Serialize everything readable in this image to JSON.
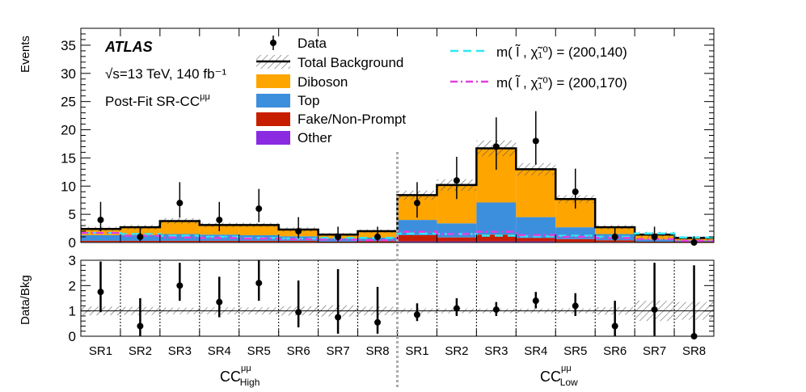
{
  "chart_data": {
    "type": "bar",
    "experiment": "ATLAS",
    "energy_label": "√s=13 TeV, 140 fb⁻¹",
    "region_label": "Post-Fit SR-CC",
    "region_label_sup": "μμ",
    "ylabel": "Events",
    "ylim": [
      0,
      38
    ],
    "yticks": [
      "0",
      "5",
      "10",
      "15",
      "20",
      "25",
      "30",
      "35"
    ],
    "ratio_ylabel": "Data/Bkg",
    "ratio_ylim": [
      0,
      3
    ],
    "ratio_yticks": [
      "0",
      "1",
      "2",
      "3"
    ],
    "categories": [
      "SR1",
      "SR2",
      "SR3",
      "SR4",
      "SR5",
      "SR6",
      "SR7",
      "SR8",
      "SR1",
      "SR2",
      "SR3",
      "SR4",
      "SR5",
      "SR6",
      "SR7",
      "SR8"
    ],
    "groups": [
      {
        "label": "CC",
        "sup": "μμ",
        "sub": "High"
      },
      {
        "label": "CC",
        "sup": "μμ",
        "sub": "Low"
      }
    ],
    "legend": {
      "data": "Data",
      "total": "Total Background",
      "diboson": "Diboson",
      "top": "Top",
      "fake": "Fake/Non-Prompt",
      "other": "Other",
      "sig1": "m( l̃ , χ̃₁⁰) = (200,140)",
      "sig2": "m( l̃ , χ̃₁⁰) = (200,170)"
    },
    "colors": {
      "diboson": "#ffa500",
      "top": "#3c8fdc",
      "fake": "#c81e00",
      "other": "#8a2be2",
      "sig1": "#2ee8f0",
      "sig2": "#e23ee2"
    },
    "stack": {
      "other": [
        0.1,
        0.1,
        0.1,
        0.1,
        0.1,
        0.1,
        0.05,
        0.05,
        0.2,
        0.2,
        0.2,
        0.2,
        0.1,
        0.1,
        0.05,
        0.05
      ],
      "fake": [
        0.2,
        0.2,
        0.2,
        0.2,
        0.2,
        0.2,
        0.1,
        0.2,
        1.1,
        0.7,
        1.2,
        0.6,
        0.5,
        0.3,
        0.1,
        0.1
      ],
      "top": [
        1.0,
        1.0,
        1.2,
        1.1,
        1.0,
        0.8,
        0.6,
        0.6,
        2.7,
        2.5,
        5.7,
        3.7,
        2.1,
        1.1,
        0.4,
        0.2
      ],
      "diboson": [
        1.1,
        1.4,
        2.3,
        1.7,
        1.8,
        1.2,
        0.6,
        1.1,
        4.4,
        6.8,
        9.6,
        8.5,
        5.0,
        1.2,
        0.8,
        0.4
      ]
    },
    "total_background": [
      2.4,
      2.7,
      3.8,
      3.1,
      3.1,
      2.3,
      1.4,
      2.0,
      8.4,
      10.2,
      16.7,
      13.0,
      7.7,
      2.7,
      1.4,
      0.8
    ],
    "total_uncertainty": [
      0.4,
      0.4,
      0.5,
      0.4,
      0.4,
      0.4,
      0.3,
      0.3,
      0.8,
      1.0,
      1.4,
      1.1,
      0.7,
      0.4,
      0.5,
      0.3
    ],
    "data": [
      4,
      1,
      7,
      4,
      6,
      2,
      1,
      1,
      7,
      11,
      17,
      18,
      9,
      1,
      1,
      0
    ],
    "data_err_up": [
      3.2,
      1.8,
      3.7,
      3.2,
      3.5,
      2.5,
      1.8,
      1.8,
      3.7,
      4.2,
      5.2,
      5.3,
      4.1,
      1.8,
      1.8,
      1.1
    ],
    "data_err_dn": [
      2.0,
      0.8,
      2.6,
      2.0,
      2.4,
      1.3,
      0.8,
      0.8,
      2.6,
      3.3,
      4.1,
      4.2,
      3.0,
      0.8,
      0.8,
      0
    ],
    "signal_200_140": [
      1.7,
      1.5,
      1.2,
      1.0,
      0.8,
      0.7,
      0.8,
      0.8,
      1.6,
      1.5,
      1.2,
      1.1,
      1.2,
      1.0,
      1.6,
      0.9
    ],
    "signal_200_170": [
      1.7,
      1.2,
      0.9,
      0.8,
      0.7,
      0.6,
      0.5,
      0.4,
      1.9,
      1.5,
      1.9,
      1.3,
      1.0,
      0.8,
      0.6,
      0.3
    ],
    "ratio": [
      1.75,
      0.4,
      2.0,
      1.35,
      2.1,
      0.95,
      0.75,
      0.55,
      0.85,
      1.1,
      1.05,
      1.4,
      1.2,
      0.4,
      1.05,
      0.0
    ],
    "ratio_err_up": [
      1.2,
      1.1,
      0.9,
      1.0,
      1.2,
      1.25,
      1.9,
      1.4,
      0.45,
      0.4,
      0.3,
      0.35,
      0.5,
      1.0,
      1.85,
      2.8
    ],
    "ratio_err_dn": [
      0.8,
      0.4,
      0.6,
      0.6,
      0.7,
      0.6,
      0.65,
      0.45,
      0.25,
      0.3,
      0.25,
      0.3,
      0.4,
      0.4,
      1.05,
      0
    ],
    "ratio_band": [
      0.17,
      0.16,
      0.13,
      0.14,
      0.14,
      0.18,
      0.22,
      0.17,
      0.1,
      0.1,
      0.09,
      0.09,
      0.1,
      0.15,
      0.4,
      0.35
    ]
  }
}
